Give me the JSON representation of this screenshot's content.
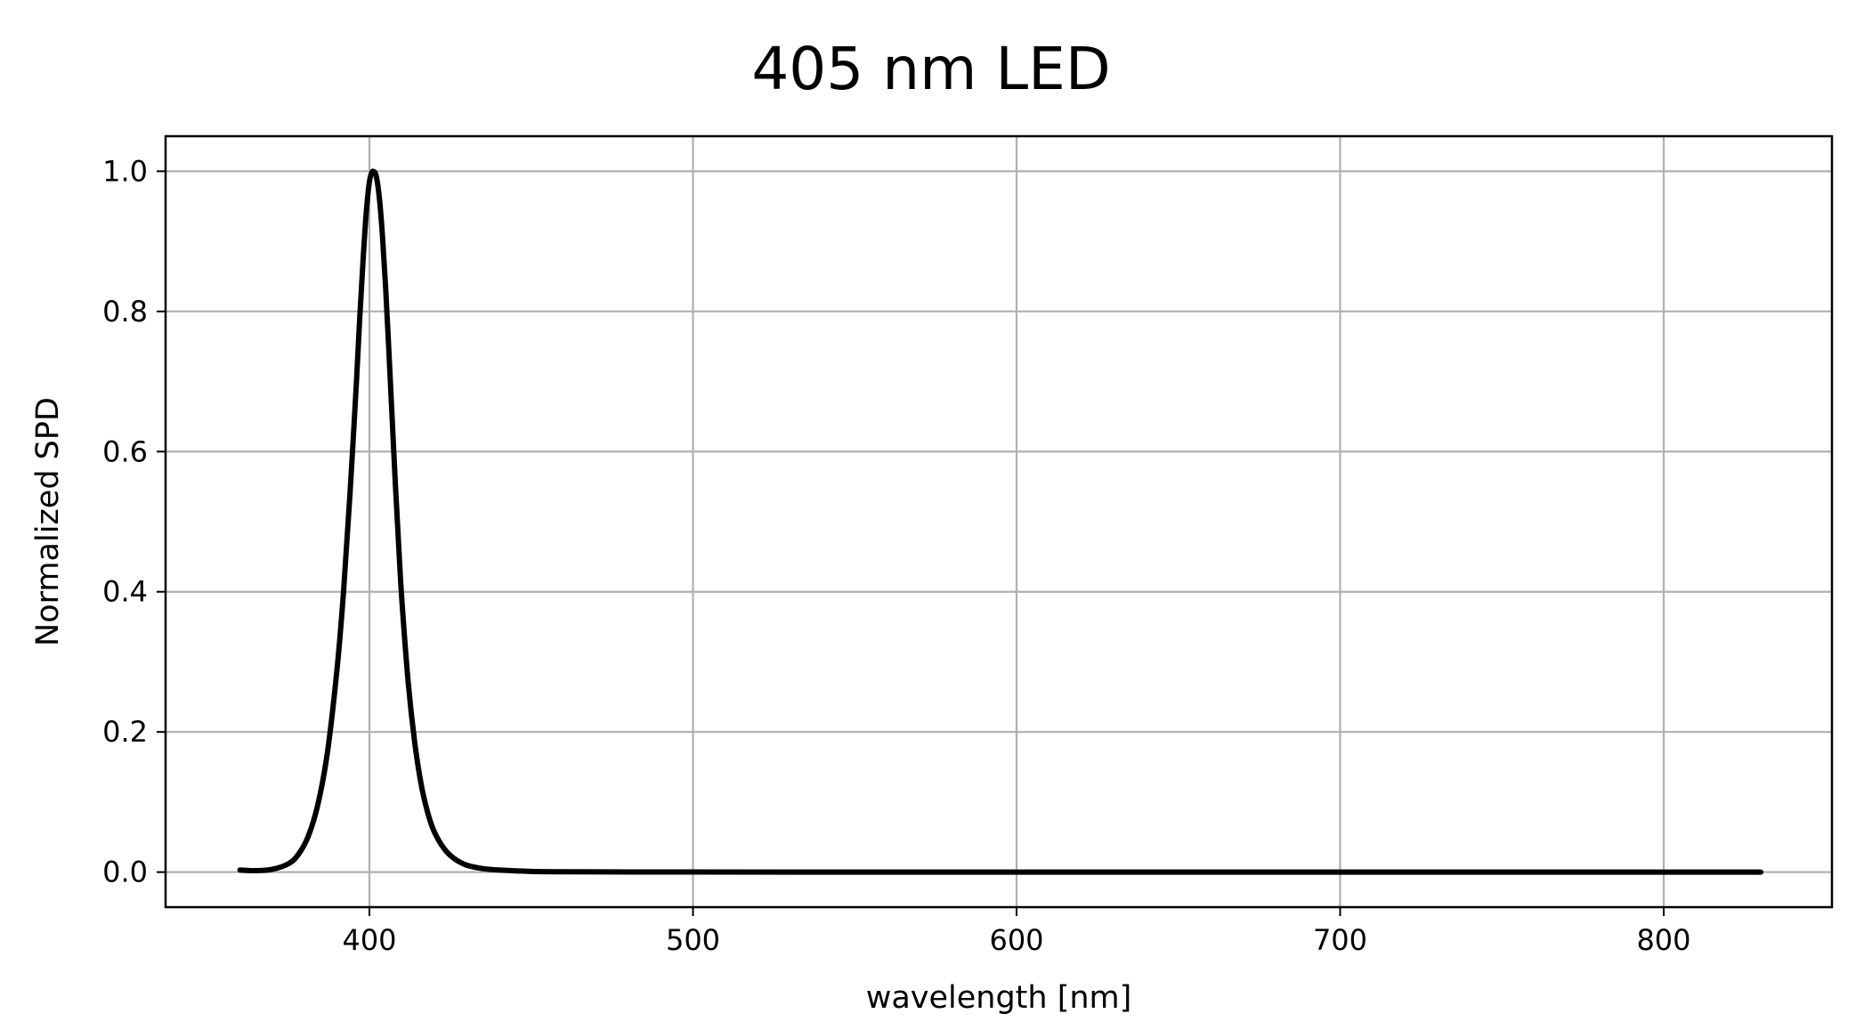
{
  "chart_data": {
    "type": "line",
    "title": "405 nm LED",
    "xlabel": "wavelength [nm]",
    "ylabel": "Normalized SPD",
    "xlim": [
      337,
      852
    ],
    "ylim": [
      -0.05,
      1.05
    ],
    "xticks": [
      400,
      500,
      600,
      700,
      800
    ],
    "xtick_labels": [
      "400",
      "500",
      "600",
      "700",
      "800"
    ],
    "yticks": [
      0.0,
      0.2,
      0.4,
      0.6,
      0.8,
      1.0
    ],
    "ytick_labels": [
      "0.0",
      "0.2",
      "0.4",
      "0.6",
      "0.8",
      "1.0"
    ],
    "grid": true,
    "line_color": "#000000",
    "grid_color": "#b0b0b0",
    "series": [
      {
        "x": [
          360,
          365,
          370,
          375,
          378,
          381,
          384,
          387,
          390,
          392,
          394,
          396,
          397,
          398,
          399,
          400,
          401,
          402,
          403,
          404,
          405,
          406,
          407,
          408,
          409,
          410,
          412,
          414,
          416,
          418,
          420,
          423,
          426,
          430,
          435,
          440,
          450,
          460,
          480,
          500,
          550,
          600,
          650,
          700,
          750,
          800,
          830
        ],
        "y": [
          0.003,
          0.002,
          0.004,
          0.012,
          0.025,
          0.05,
          0.095,
          0.17,
          0.29,
          0.4,
          0.54,
          0.7,
          0.79,
          0.87,
          0.94,
          0.985,
          1.0,
          0.995,
          0.965,
          0.91,
          0.835,
          0.745,
          0.65,
          0.555,
          0.47,
          0.39,
          0.27,
          0.185,
          0.125,
          0.085,
          0.058,
          0.034,
          0.02,
          0.01,
          0.005,
          0.003,
          0.001,
          0.0005,
          0.0002,
          0.0001,
          0.0,
          0.0,
          0.0,
          0.0,
          0.0,
          0.0,
          0.0
        ]
      }
    ]
  }
}
